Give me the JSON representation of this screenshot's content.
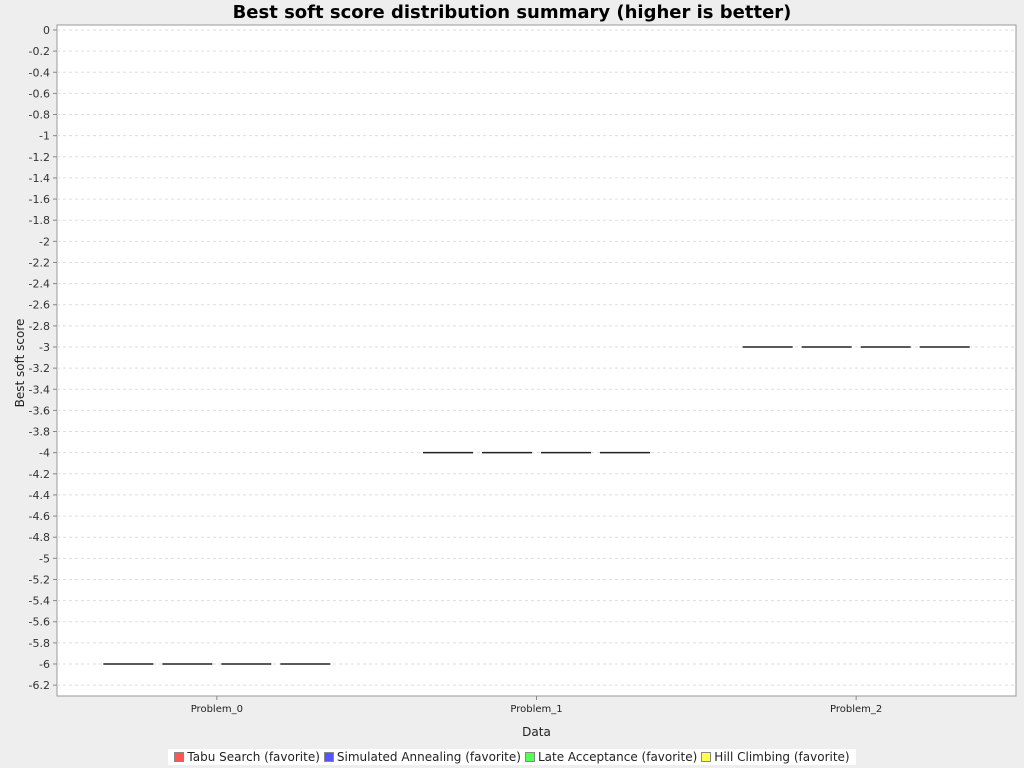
{
  "chart_data": {
    "type": "box",
    "title": "Best soft score distribution summary (higher is better)",
    "xlabel": "Data",
    "ylabel": "Best soft score",
    "ylim": [
      -6.3,
      0
    ],
    "ytick_step": 0.2,
    "grid": true,
    "legend_position": "bottom",
    "categories": [
      "Problem_0",
      "Problem_1",
      "Problem_2"
    ],
    "series": [
      {
        "name": "Tabu Search (favorite)",
        "color": "#ff5555",
        "values": [
          -6,
          -4,
          -3
        ]
      },
      {
        "name": "Simulated Annealing (favorite)",
        "color": "#5555ff",
        "values": [
          -6,
          -4,
          -3
        ]
      },
      {
        "name": "Late Acceptance (favorite)",
        "color": "#55ff55",
        "values": [
          -6,
          -4,
          -3
        ]
      },
      {
        "name": "Hill Climbing (favorite)",
        "color": "#ffff55",
        "values": [
          -6,
          -4,
          -3
        ]
      }
    ]
  }
}
